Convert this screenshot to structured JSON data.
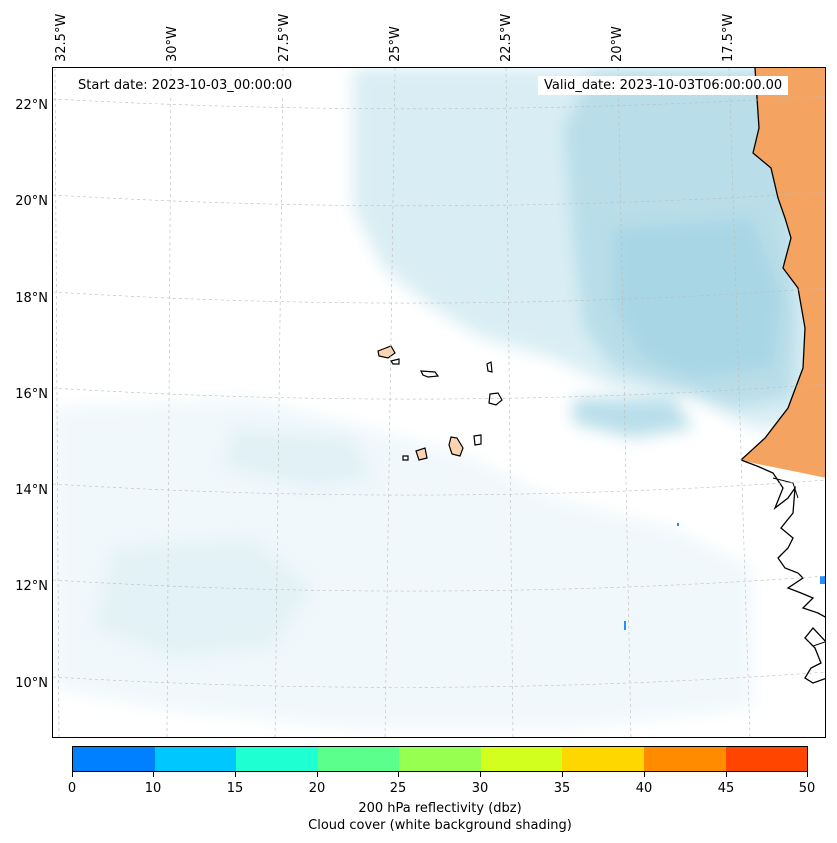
{
  "map": {
    "start_date": "Start date: 2023-10-03_00:00:00",
    "valid_date": "Valid_date: 2023-10-03T06:00:00.00",
    "longitude_labels": [
      "32.5°W",
      "30°W",
      "27.5°W",
      "25°W",
      "22.5°W",
      "20°W",
      "17.5°W"
    ],
    "latitude_labels": [
      "22°N",
      "20°N",
      "18°N",
      "16°N",
      "14°N",
      "12°N",
      "10°N"
    ],
    "land_color": "#f4a460",
    "cloud_color": "#add8e6",
    "coastline_color": "#000000",
    "grid": "dashed"
  },
  "colorbar": {
    "ticks": [
      "0",
      "10",
      "15",
      "20",
      "25",
      "30",
      "35",
      "40",
      "45",
      "50"
    ],
    "colors": [
      "#0080ff",
      "#00c8ff",
      "#1effd2",
      "#5aff8c",
      "#96ff50",
      "#d2ff1e",
      "#ffd700",
      "#ff8c00",
      "#ff4500"
    ],
    "label": "200 hPa reflectivity (dbz)",
    "sublabel": "Cloud cover (white background shading)"
  }
}
